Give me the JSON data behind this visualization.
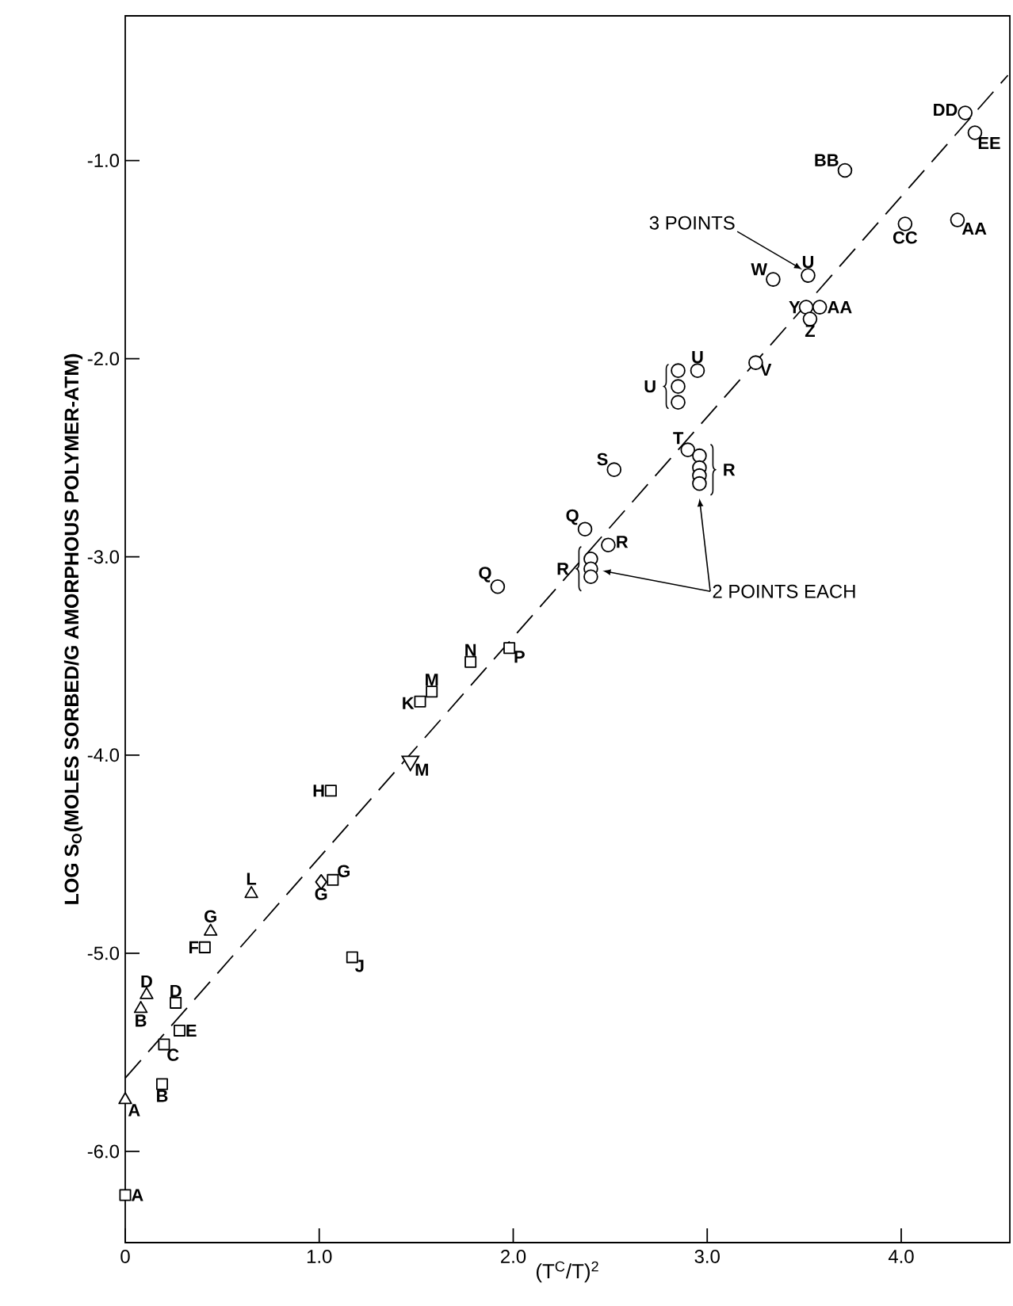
{
  "chart_data": {
    "type": "scatter",
    "xlabel": "(T$^{C}$/T)$^{2}$",
    "ylabel": "LOG S$_{O}$(MOLES SORBED/G AMORPHOUS POLYMER-ATM)",
    "xlim": [
      0,
      4.56
    ],
    "ylim": [
      -6.46,
      -0.27
    ],
    "xticks": [
      0,
      {
        "value": 1,
        "label": "1.0"
      },
      {
        "value": 2,
        "label": "2.0"
      },
      {
        "value": 3,
        "label": "3.0"
      },
      {
        "value": 4,
        "label": "4.0"
      }
    ],
    "yticks": [
      {
        "value": -1,
        "label": "-1.0"
      },
      {
        "value": -2,
        "label": "-2.0"
      },
      {
        "value": -3,
        "label": "-3.0"
      },
      {
        "value": -4,
        "label": "-4.0"
      },
      {
        "value": -5,
        "label": "-5.0"
      },
      {
        "value": -6,
        "label": "-6.0"
      }
    ],
    "series": [
      {
        "type": "scatter",
        "marker": "square",
        "color": "#000000",
        "x": [
          0.0,
          0.19,
          0.2,
          0.28,
          0.26,
          0.41,
          1.07,
          1.17,
          1.06,
          1.52,
          1.58,
          1.78,
          1.98
        ],
        "values": [
          -6.22,
          -5.66,
          -5.46,
          -5.39,
          -5.25,
          -4.97,
          -4.63,
          -5.02,
          -4.18,
          -3.73,
          -3.68,
          -3.53,
          -3.46
        ]
      },
      {
        "type": "scatter",
        "marker": "diamond",
        "color": "#000000",
        "x": [
          1.01
        ],
        "values": [
          -4.64
        ]
      },
      {
        "type": "scatter",
        "marker": "triangle",
        "color": "#000000",
        "x": [
          0.0,
          0.08,
          0.11,
          0.44,
          0.65
        ],
        "values": [
          -5.74,
          -5.28,
          -5.21,
          -4.89,
          -4.7
        ]
      },
      {
        "type": "scatter",
        "marker": "triangle-down",
        "color": "#000000",
        "x": [
          1.47
        ],
        "values": [
          -4.03
        ]
      },
      {
        "type": "scatter",
        "marker": "circle",
        "color": "#000000",
        "x": [
          1.92,
          2.37,
          2.49,
          2.4,
          2.4,
          2.4,
          2.52,
          2.9,
          2.96,
          2.96,
          2.96,
          2.96,
          2.85,
          2.85,
          2.85,
          2.95,
          3.25,
          3.34,
          3.52,
          3.51,
          3.58,
          3.53,
          3.71,
          4.02,
          4.29,
          4.33,
          4.38
        ],
        "values": [
          -3.15,
          -2.86,
          -2.94,
          -3.01,
          -3.06,
          -3.1,
          -2.56,
          -2.46,
          -2.49,
          -2.55,
          -2.59,
          -2.63,
          -2.06,
          -2.14,
          -2.22,
          -2.06,
          -2.02,
          -1.6,
          -1.58,
          -1.74,
          -1.74,
          -1.8,
          -1.05,
          -1.32,
          -1.3,
          -0.76,
          -0.86
        ]
      },
      {
        "type": "line",
        "line_style": "dashed",
        "marker": "none",
        "color": "#000000",
        "x": [
          0,
          4.55
        ],
        "values": [
          -5.63,
          -0.57
        ]
      }
    ],
    "annotations": [
      {
        "text": "A",
        "x": 0.0,
        "y": -6.22
      },
      {
        "text": "B",
        "x": 0.19,
        "y": -5.66
      },
      {
        "text": "C",
        "x": 0.2,
        "y": -5.46
      },
      {
        "text": "E",
        "x": 0.28,
        "y": -5.39
      },
      {
        "text": "D",
        "x": 0.26,
        "y": -5.25
      },
      {
        "text": "F",
        "x": 0.41,
        "y": -4.97
      },
      {
        "text": "G",
        "x": 1.07,
        "y": -4.63
      },
      {
        "text": "G",
        "x": 1.01,
        "y": -4.64
      },
      {
        "text": "J",
        "x": 1.17,
        "y": -5.02
      },
      {
        "text": "H",
        "x": 1.06,
        "y": -4.18
      },
      {
        "text": "K",
        "x": 1.52,
        "y": -3.73
      },
      {
        "text": "M",
        "x": 1.58,
        "y": -3.68
      },
      {
        "text": "N",
        "x": 1.78,
        "y": -3.53
      },
      {
        "text": "P",
        "x": 1.98,
        "y": -3.46
      },
      {
        "text": "A",
        "x": 0.0,
        "y": -5.74
      },
      {
        "text": "B",
        "x": 0.08,
        "y": -5.28
      },
      {
        "text": "D",
        "x": 0.11,
        "y": -5.21
      },
      {
        "text": "G",
        "x": 0.44,
        "y": -4.89
      },
      {
        "text": "L",
        "x": 0.65,
        "y": -4.7
      },
      {
        "text": "M",
        "x": 1.47,
        "y": -4.03
      },
      {
        "text": "Q",
        "x": 1.92,
        "y": -3.15
      },
      {
        "text": "Q",
        "x": 2.37,
        "y": -2.86
      },
      {
        "text": "R",
        "x": 2.49,
        "y": -2.94
      },
      {
        "text": "R",
        "x": 2.4,
        "y": -3.06
      },
      {
        "text": "S",
        "x": 2.52,
        "y": -2.56
      },
      {
        "text": "T",
        "x": 2.9,
        "y": -2.46
      },
      {
        "text": "R",
        "x": 2.96,
        "y": -2.56
      },
      {
        "text": "U",
        "x": 2.85,
        "y": -2.14
      },
      {
        "text": "U",
        "x": 2.95,
        "y": -2.06
      },
      {
        "text": "V",
        "x": 3.25,
        "y": -2.02
      },
      {
        "text": "W",
        "x": 3.34,
        "y": -1.6
      },
      {
        "text": "U",
        "x": 3.52,
        "y": -1.58
      },
      {
        "text": "Y",
        "x": 3.51,
        "y": -1.74
      },
      {
        "text": "AA",
        "x": 3.58,
        "y": -1.74
      },
      {
        "text": "Z",
        "x": 3.53,
        "y": -1.8
      },
      {
        "text": "BB",
        "x": 3.71,
        "y": -1.05
      },
      {
        "text": "CC",
        "x": 4.02,
        "y": -1.32
      },
      {
        "text": "AA",
        "x": 4.29,
        "y": -1.3
      },
      {
        "text": "DD",
        "x": 4.33,
        "y": -0.76
      },
      {
        "text": "EE",
        "x": 4.38,
        "y": -0.86
      },
      {
        "text": "3 POINTS",
        "x": 3.49,
        "y": -1.55
      },
      {
        "text": "2 POINTS EACH",
        "x": 2.46,
        "y": -3.07
      }
    ]
  }
}
